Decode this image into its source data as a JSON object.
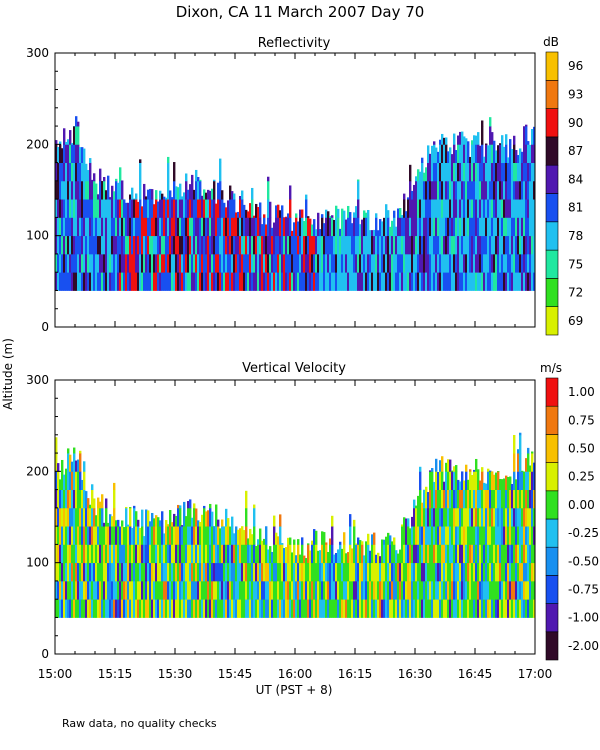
{
  "figure_title": "Dixon, CA 11 March 2007  Day  70",
  "footnote": "Raw data, no quality checks",
  "chart_data": [
    {
      "type": "heatmap",
      "title": "Reflectivity",
      "xlabel": "UT  (PST + 8)",
      "ylabel": "Altitude (m)",
      "xlim": [
        "15:00",
        "17:00"
      ],
      "ylim": [
        0,
        300
      ],
      "x_ticks": [
        "15:00",
        "15:15",
        "15:30",
        "15:45",
        "16:00",
        "16:15",
        "16:30",
        "16:45",
        "17:00"
      ],
      "y_ticks": [
        0,
        100,
        200,
        300
      ],
      "colorbar": {
        "unit": "dB",
        "levels": [
          69,
          72,
          75,
          78,
          81,
          84,
          87,
          90,
          93,
          96
        ],
        "colors": [
          "#d8f000",
          "#30e020",
          "#20e8a0",
          "#20c0f0",
          "#1850f0",
          "#5018b0",
          "#300a28",
          "#f01010",
          "#f07810",
          "#f8c000"
        ]
      },
      "data_range_altitude_m": [
        40,
        240
      ],
      "description_values": {
        "echo_base_m": 40,
        "top_profile_minutes": [
          0,
          5,
          10,
          25,
          35,
          45,
          55,
          65,
          75,
          85,
          95,
          105,
          115,
          120
        ],
        "top_profile_altitude_m": [
          200,
          220,
          160,
          140,
          160,
          140,
          120,
          120,
          120,
          120,
          200,
          200,
          200,
          220
        ]
      }
    },
    {
      "type": "heatmap",
      "title": "Vertical Velocity",
      "xlabel": "UT  (PST + 8)",
      "ylabel": "Altitude (m)",
      "xlim": [
        "15:00",
        "17:00"
      ],
      "ylim": [
        0,
        300
      ],
      "x_ticks": [
        "15:00",
        "15:15",
        "15:30",
        "15:45",
        "16:00",
        "16:15",
        "16:30",
        "16:45",
        "17:00"
      ],
      "y_ticks": [
        0,
        100,
        200,
        300
      ],
      "colorbar": {
        "unit": "m/s",
        "levels": [
          "-2.00",
          "-1.00",
          "-0.75",
          "-0.50",
          "-0.25",
          "0.00",
          "0.25",
          "0.50",
          "0.75",
          "1.00"
        ],
        "colors": [
          "#300a28",
          "#5018b0",
          "#1850f0",
          "#1890f0",
          "#20c0f0",
          "#30e020",
          "#d8f000",
          "#f8c000",
          "#f07810",
          "#f01010"
        ]
      },
      "data_range_altitude_m": [
        40,
        240
      ],
      "description_values": {
        "echo_base_m": 40,
        "top_profile_minutes": [
          0,
          5,
          10,
          25,
          35,
          45,
          55,
          65,
          75,
          85,
          95,
          105,
          115,
          120
        ],
        "top_profile_altitude_m": [
          200,
          220,
          160,
          140,
          160,
          140,
          120,
          120,
          120,
          120,
          200,
          200,
          200,
          220
        ]
      }
    }
  ]
}
